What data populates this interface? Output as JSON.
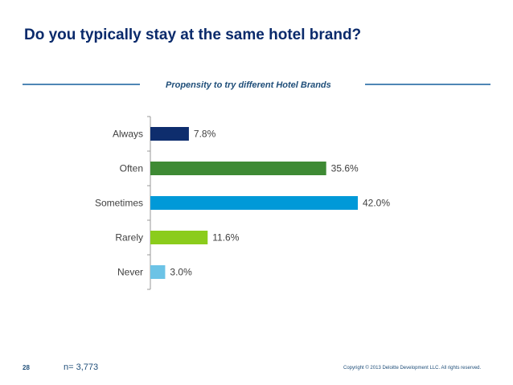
{
  "slide": {
    "title": "Do you typically stay at the same hotel brand?",
    "page_number": "28",
    "sample_size": "n= 3,773",
    "copyright": "Copyright © 2013 Deloitte Development LLC. All rights reserved."
  },
  "colors": {
    "title": "#0a2a6b",
    "accent_line": "#4f86b5"
  },
  "chart_data": {
    "type": "bar",
    "orientation": "horizontal",
    "title": "Propensity to try different  Hotel Brands",
    "categories": [
      "Always",
      "Often",
      "Sometimes",
      "Rarely",
      "Never"
    ],
    "values": [
      7.8,
      35.6,
      42.0,
      11.6,
      3.0
    ],
    "value_labels": [
      "7.8%",
      "35.6%",
      "42.0%",
      "11.6%",
      "3.0%"
    ],
    "bar_colors": [
      "#0e2d6d",
      "#3e8a34",
      "#0099d8",
      "#8bcc1c",
      "#6cc3e6"
    ],
    "unit": "%",
    "xlim": [
      0,
      42.0
    ],
    "grid": false,
    "legend": "none"
  }
}
